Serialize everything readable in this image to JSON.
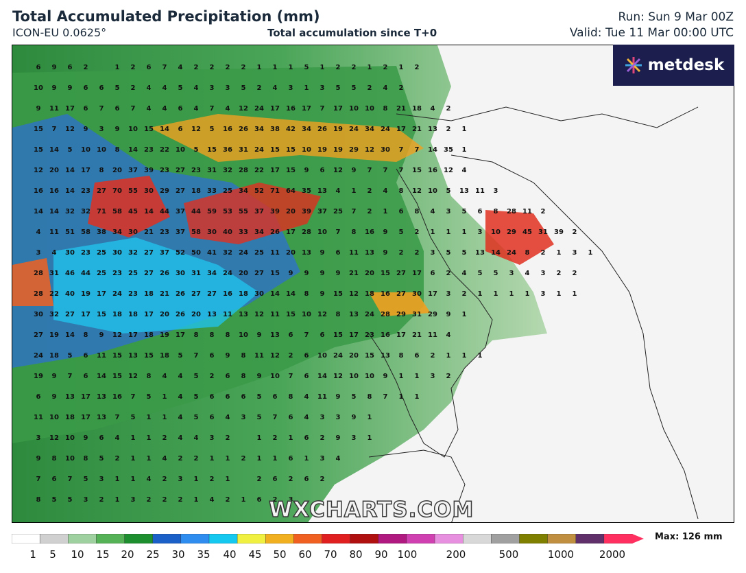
{
  "header": {
    "title": "Total Accumulated Precipitation (mm)",
    "model": "ICON-EU 0.0625°",
    "subtitle": "Total accumulation since T+0",
    "run": "Run: Sun 9 Mar 00Z",
    "valid": "Valid: Tue 11 Mar 00:00 UTC"
  },
  "logo": {
    "text": "metdesk",
    "icon": "metdesk-star-icon"
  },
  "watermark": "WXCHARTS.COM",
  "legend": {
    "max_label": "Max: 126 mm",
    "ticks": [
      "1",
      "5",
      "10",
      "15",
      "20",
      "25",
      "30",
      "35",
      "40",
      "45",
      "50",
      "60",
      "70",
      "80",
      "90",
      "100",
      "200",
      "500",
      "1000",
      "2000"
    ],
    "colors": [
      "#ffffff",
      "#d0d0d0",
      "#9fd09f",
      "#56b256",
      "#1e8f2f",
      "#1b60c8",
      "#2f8df0",
      "#14c8f0",
      "#f0f040",
      "#f0b020",
      "#f06020",
      "#e02020",
      "#b01010",
      "#b01a80",
      "#d040b0",
      "#e890e0",
      "#d8d8d8",
      "#a0a0a0",
      "#808000",
      "#c09040",
      "#60306a",
      "#ff3060"
    ]
  },
  "map_values": {
    "rows": [
      "6 9 6 2 _ 1 2 6 7 4 2 2 2 2 1 1 1 5 1 2 2 1 2 1 2",
      "10 9 9 6 6 5 2 4 4 5 4 3 3 5 2 4 3 1 3 5 5 2 4 2",
      "9 11 17 6 7 6 7 4 4 6 4 7 4 12 24 17 16 17 7 17 10 10 8 21 18 4 2",
      "15 7 12 9 3 9 10 15 14 6 12 5 16 26 34 38 42 34 26 19 24 34 24 17 21 13 2 1",
      "15 14 5 10 10 8 14 23 22 10 5 15 36 31 24 15 15 10 19 19 29 12 30 7 7 14 35 1",
      "12 20 14 17 8 20 37 39 23 27 23 31 32 28 22 17 15 9 6 12 9 7 7 7 15 16 12 4",
      "16 16 14 23 27 70 55 30 29 27 18 33 25 34 52 71 64 35 13 4 1 2 4 8 12 10 5 13 11 3",
      "14 14 32 32 71 58 45 14 44 37 44 59 53 55 37 39 20 39 37 25 7 2 1 6 8 4 3 5 6 8 28 11 2",
      "4 11 51 58 38 34 30 21 23 37 58 30 40 33 34 26 17 28 10 7 8 16 9 5 2 1 1 1 3 10 29 45 31 39 2",
      "3 4 30 23 25 30 32 27 37 52 50 41 32 24 25 11 20 13 9 6 11 13 9 2 2 3 5 5 13 14 24 8 2 1 3 1",
      "28 31 46 44 25 23 25 27 26 30 31 34 24 20 27 15 9 9 9 9 21 20 15 27 17 6 2 4 5 5 3 4 3 2 2",
      "28 22 40 19 17 24 23 18 21 26 27 27 16 18 30 14 14 8 9 15 12 18 16 27 30 17 3 2 1 1 1 1 3 1 1",
      "30 32 27 17 15 18 18 17 20 26 20 13 11 13 12 11 15 10 12 8 13 24 28 29 31 29 9 1",
      "27 19 14 8 9 12 17 18 19 17 8 8 8 10 9 13 6 7 6 15 17 23 16 17 21 11 4",
      "24 18 5 6 11 15 13 15 18 5 7 6 9 8 11 12 2 6 10 24 20 15 13 8 6 2 1 1 1",
      "19 9 7 6 14 15 12 8 4 4 5 2 6 8 9 10 7 6 14 12 10 10 9 1 1 3 2",
      "6 9 13 17 13 16 7 5 1 4 5 6 6 6 5 6 8 4 11 9 5 8 7 1 1",
      "11 10 18 17 13 7 5 1 1 4 5 6 4 3 5 7 6 4 3 3 9 1",
      "3 12 10 9 6 4 1 1 2 4 4 3 2 _ 1 2 1 6 2 9 3 1",
      "9 8 10 8 5 2 1 1 4 2 2 1 1 2 1 1 6 1 3 4",
      "7 6 7 5 3 1 1 4 2 3 1 2 1 _ 2 6 2 6 2",
      "8 5 5 3 2 1 3 2 2 2 1 4 2 1 6 2 3"
    ]
  }
}
